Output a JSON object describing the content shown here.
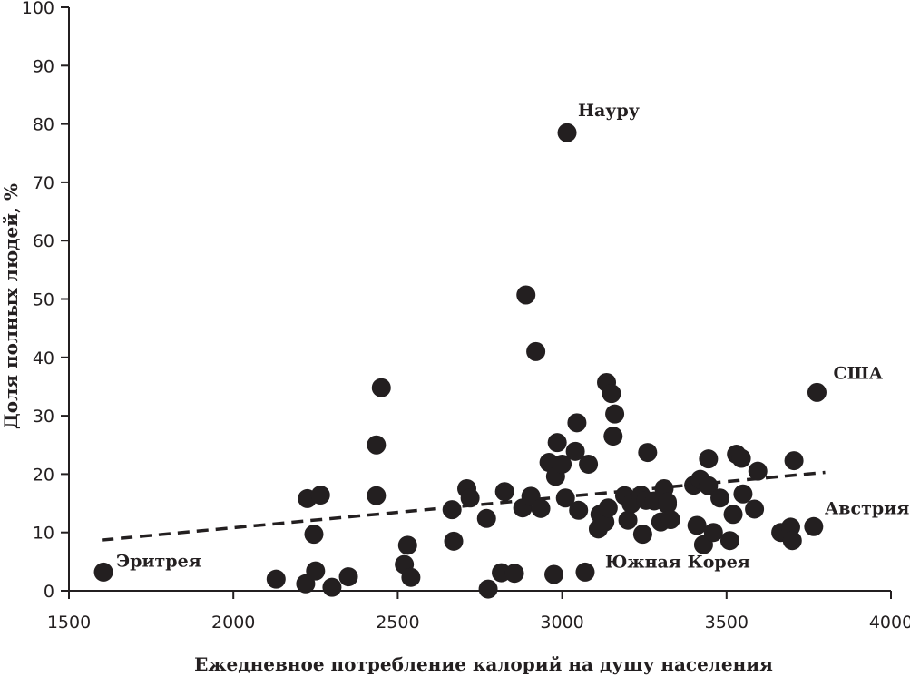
{
  "chart_data": {
    "type": "scatter",
    "title": "",
    "xlabel": "Ежедневное потребление калорий на душу населения",
    "ylabel": "Доля полных людей, %",
    "xlim": [
      1500,
      4000
    ],
    "ylim": [
      0,
      100
    ],
    "x_ticks": [
      "1500",
      "2000",
      "2500",
      "3000",
      "3500",
      "4000"
    ],
    "y_ticks": [
      "0",
      "10",
      "20",
      "30",
      "40",
      "50",
      "60",
      "70",
      "80",
      "90",
      "100"
    ],
    "grid": false,
    "legend": "none",
    "marker_color": "#231f20",
    "trendline": {
      "style": "dashed",
      "x": [
        1600,
        3800
      ],
      "y": [
        8.7,
        20.3
      ]
    },
    "annotations": [
      {
        "text": "Науру",
        "x": 3015,
        "y": 78.5
      },
      {
        "text": "США",
        "x": 3775,
        "y": 34
      },
      {
        "text": "Австрия",
        "x": 3765,
        "y": 11
      },
      {
        "text": "Эритрея",
        "x": 1605,
        "y": 3.2
      },
      {
        "text": "Южная Корея",
        "x": 3070,
        "y": 3.2
      }
    ],
    "series": [
      {
        "x": [
          1605,
          2130,
          2220,
          2225,
          2245,
          2250,
          2265,
          2300,
          2350,
          2435,
          2435,
          2450,
          2520,
          2530,
          2540,
          2665,
          2670,
          2710,
          2720,
          2770,
          2775,
          2815,
          2825,
          2855,
          2880,
          2890,
          2905,
          2920,
          2935,
          2960,
          2975,
          2980,
          2985,
          3000,
          3010,
          3040,
          3045,
          3050,
          3070,
          3080,
          3110,
          3115,
          3130,
          3135,
          3140,
          3150,
          3155,
          3160,
          3190,
          3200,
          3210,
          3240,
          3245,
          3255,
          3260,
          3280,
          3300,
          3310,
          3320,
          3320,
          3330,
          3400,
          3410,
          3420,
          3430,
          3445,
          3445,
          3460,
          3480,
          3510,
          3520,
          3530,
          3545,
          3550,
          3585,
          3595,
          3665,
          3695,
          3700,
          3705,
          3765,
          3775,
          3015
        ],
        "y": [
          3.2,
          2.0,
          1.2,
          15.8,
          9.7,
          3.4,
          16.4,
          0.6,
          2.4,
          25.0,
          16.3,
          34.8,
          4.5,
          7.8,
          2.3,
          13.9,
          8.5,
          17.5,
          15.9,
          12.4,
          0.3,
          3.1,
          17.0,
          3.0,
          14.2,
          50.7,
          16.2,
          41.0,
          14.1,
          22.0,
          2.8,
          19.6,
          25.4,
          21.7,
          15.9,
          23.9,
          28.8,
          13.8,
          3.2,
          21.7,
          10.6,
          13.1,
          11.8,
          35.7,
          14.2,
          33.8,
          26.5,
          30.3,
          16.3,
          12.1,
          14.9,
          16.4,
          9.7,
          15.5,
          23.7,
          15.4,
          11.8,
          17.5,
          14.8,
          15.2,
          12.2,
          18.1,
          11.2,
          19.1,
          7.9,
          22.6,
          18.0,
          10.0,
          15.9,
          8.6,
          13.1,
          23.4,
          22.7,
          16.6,
          14.0,
          20.5,
          10.0,
          10.9,
          8.6,
          22.3,
          11.0,
          34.0,
          78.5
        ]
      }
    ]
  }
}
